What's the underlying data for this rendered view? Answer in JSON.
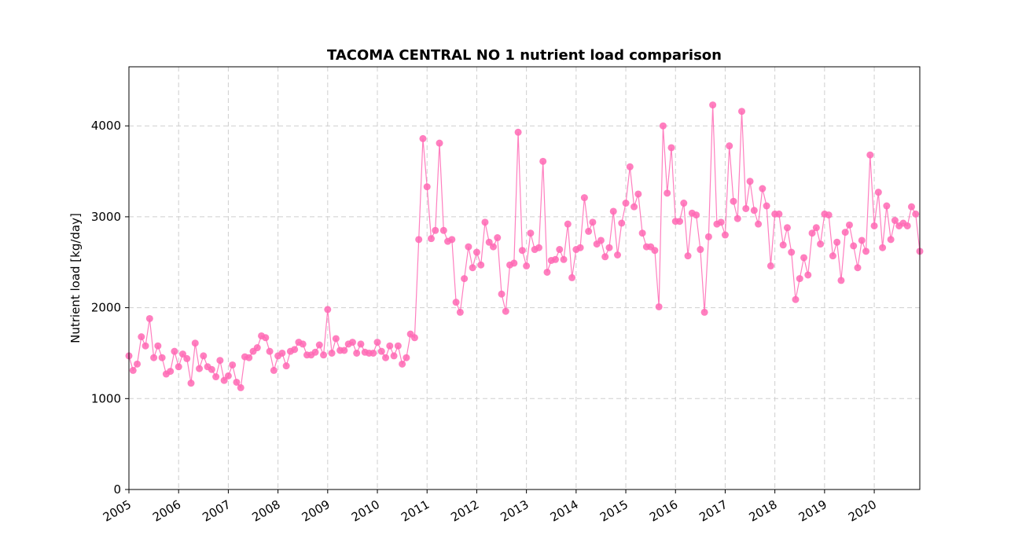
{
  "chart_data": {
    "type": "line",
    "title": "TACOMA CENTRAL NO 1 nutrient load comparison",
    "xlabel": "",
    "ylabel": "Nutrient load [kg/day]",
    "xlim": [
      "2005-01",
      "2020-12"
    ],
    "ylim": [
      0,
      4650
    ],
    "yticks": [
      0,
      1000,
      2000,
      3000,
      4000
    ],
    "xticks": [
      "2005",
      "2006",
      "2007",
      "2008",
      "2009",
      "2010",
      "2011",
      "2012",
      "2013",
      "2014",
      "2015",
      "2016",
      "2017",
      "2018",
      "2019",
      "2020"
    ],
    "grid": true,
    "legend": "none",
    "series": [
      {
        "color": "#ff69b4",
        "marker": "circle",
        "x": [
          "2005-01",
          "2005-02",
          "2005-03",
          "2005-04",
          "2005-05",
          "2005-06",
          "2005-07",
          "2005-08",
          "2005-09",
          "2005-10",
          "2005-11",
          "2005-12",
          "2006-01",
          "2006-02",
          "2006-03",
          "2006-04",
          "2006-05",
          "2006-06",
          "2006-07",
          "2006-08",
          "2006-09",
          "2006-10",
          "2006-11",
          "2006-12",
          "2007-01",
          "2007-02",
          "2007-03",
          "2007-04",
          "2007-05",
          "2007-06",
          "2007-07",
          "2007-08",
          "2007-09",
          "2007-10",
          "2007-11",
          "2007-12",
          "2008-01",
          "2008-02",
          "2008-03",
          "2008-04",
          "2008-05",
          "2008-06",
          "2008-07",
          "2008-08",
          "2008-09",
          "2008-10",
          "2008-11",
          "2008-12",
          "2009-01",
          "2009-02",
          "2009-03",
          "2009-04",
          "2009-05",
          "2009-06",
          "2009-07",
          "2009-08",
          "2009-09",
          "2009-10",
          "2009-11",
          "2009-12",
          "2010-01",
          "2010-02",
          "2010-03",
          "2010-04",
          "2010-05",
          "2010-06",
          "2010-07",
          "2010-08",
          "2010-09",
          "2010-10",
          "2010-11",
          "2010-12",
          "2011-01",
          "2011-02",
          "2011-03",
          "2011-04",
          "2011-05",
          "2011-06",
          "2011-07",
          "2011-08",
          "2011-09",
          "2011-10",
          "2011-11",
          "2011-12",
          "2012-01",
          "2012-02",
          "2012-03",
          "2012-04",
          "2012-05",
          "2012-06",
          "2012-07",
          "2012-08",
          "2012-09",
          "2012-10",
          "2012-11",
          "2012-12",
          "2013-01",
          "2013-02",
          "2013-03",
          "2013-04",
          "2013-05",
          "2013-06",
          "2013-07",
          "2013-08",
          "2013-09",
          "2013-10",
          "2013-11",
          "2013-12",
          "2014-01",
          "2014-02",
          "2014-03",
          "2014-04",
          "2014-05",
          "2014-06",
          "2014-07",
          "2014-08",
          "2014-09",
          "2014-10",
          "2014-11",
          "2014-12",
          "2015-01",
          "2015-02",
          "2015-03",
          "2015-04",
          "2015-05",
          "2015-06",
          "2015-07",
          "2015-08",
          "2015-09",
          "2015-10",
          "2015-11",
          "2015-12",
          "2016-01",
          "2016-02",
          "2016-03",
          "2016-04",
          "2016-05",
          "2016-06",
          "2016-07",
          "2016-08",
          "2016-09",
          "2016-10",
          "2016-11",
          "2016-12",
          "2017-01",
          "2017-02",
          "2017-03",
          "2017-04",
          "2017-05",
          "2017-06",
          "2017-07",
          "2017-08",
          "2017-09",
          "2017-10",
          "2017-11",
          "2017-12",
          "2018-01",
          "2018-02",
          "2018-03",
          "2018-04",
          "2018-05",
          "2018-06",
          "2018-07",
          "2018-08",
          "2018-09",
          "2018-10",
          "2018-11",
          "2018-12",
          "2019-01",
          "2019-02",
          "2019-03",
          "2019-04",
          "2019-05",
          "2019-06",
          "2019-07",
          "2019-08",
          "2019-09",
          "2019-10",
          "2019-11",
          "2019-12",
          "2020-01",
          "2020-02",
          "2020-03",
          "2020-04",
          "2020-05",
          "2020-06",
          "2020-07",
          "2020-08",
          "2020-09",
          "2020-10",
          "2020-11",
          "2020-12"
        ],
        "values": [
          1470,
          1310,
          1380,
          1680,
          1580,
          1880,
          1450,
          1580,
          1450,
          1270,
          1300,
          1520,
          1350,
          1490,
          1440,
          1170,
          1610,
          1330,
          1470,
          1350,
          1320,
          1240,
          1420,
          1200,
          1250,
          1370,
          1180,
          1120,
          1460,
          1450,
          1520,
          1560,
          1690,
          1670,
          1520,
          1310,
          1470,
          1500,
          1360,
          1520,
          1540,
          1620,
          1600,
          1480,
          1480,
          1510,
          1590,
          1480,
          1980,
          1500,
          1660,
          1530,
          1530,
          1600,
          1620,
          1500,
          1600,
          1510,
          1500,
          1500,
          1620,
          1520,
          1450,
          1580,
          1470,
          1580,
          1380,
          1450,
          1710,
          1670,
          2750,
          3860,
          3330,
          2760,
          2850,
          3810,
          2850,
          2730,
          2750,
          2060,
          1950,
          2320,
          2670,
          2440,
          2610,
          2470,
          2940,
          2720,
          2670,
          2770,
          2150,
          1960,
          2470,
          2490,
          3930,
          2630,
          2460,
          2820,
          2640,
          2660,
          3610,
          2390,
          2520,
          2530,
          2640,
          2530,
          2920,
          2330,
          2640,
          2660,
          3210,
          2840,
          2940,
          2700,
          2740,
          2560,
          2660,
          3060,
          2580,
          2930,
          3150,
          3550,
          3110,
          3250,
          2820,
          2670,
          2670,
          2630,
          2010,
          4000,
          3260,
          3760,
          2950,
          2950,
          3150,
          2570,
          3040,
          3020,
          2640,
          1950,
          2780,
          4230,
          2920,
          2940,
          2800,
          3780,
          3170,
          2980,
          4160,
          3090,
          3390,
          3070,
          2920,
          3310,
          3120,
          2460,
          3030,
          3030,
          2690,
          2880,
          2610,
          2090,
          2320,
          2550,
          2360,
          2820,
          2880,
          2700,
          3030,
          3020,
          2570,
          2720,
          2300,
          2830,
          2910,
          2680,
          2440,
          2740,
          2620,
          3680,
          2900,
          3270,
          2660,
          3120,
          2750,
          2960,
          2900,
          2930,
          2900,
          3110,
          3030,
          2620
        ]
      }
    ]
  }
}
